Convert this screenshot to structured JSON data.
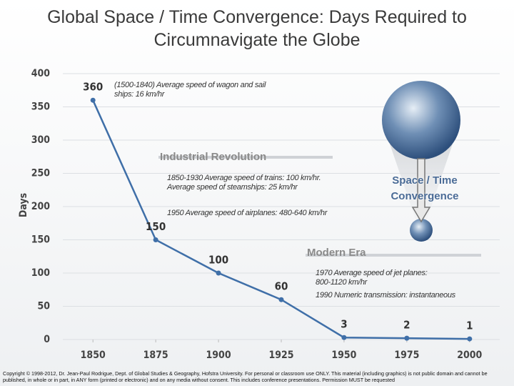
{
  "chart_data": {
    "type": "line",
    "title": "Global Space / Time Convergence: Days Required to Circumnavigate the Globe",
    "y_label": "Days",
    "x": [
      1850,
      1875,
      1900,
      1925,
      1950,
      1975,
      2000
    ],
    "series": [
      {
        "name": "Days",
        "color": "#3f6fa8",
        "values": [
          360,
          150,
          100,
          60,
          3,
          2,
          1
        ]
      }
    ],
    "xlim": [
      1838,
      2012
    ],
    "xticks": [
      1850,
      1875,
      1900,
      1925,
      1950,
      1975,
      2000
    ],
    "ylim": [
      0,
      400
    ],
    "yticks": [
      0,
      50,
      100,
      150,
      200,
      250,
      300,
      350,
      400
    ],
    "grid": true,
    "annotations": [
      "(1500-1840) Average speed of wagon and sail ships: 16 km/hr",
      "Industrial Revolution",
      "1850-1930 Average speed of trains: 100 km/hr. Average speed of steamships: 25 km/hr",
      "1950 Average speed of airplanes: 480-640 km/hr",
      "Modern Era",
      "1970 Average speed of jet planes: 800-1120 km/hr",
      "1990 Numeric transmission: instantaneous",
      "Space / Time Convergence"
    ],
    "footer": "Copyright © 1998-2012, Dr. Jean-Paul Rodrigue, Dept. of Global Studies & Geography, Hofstra University. For personal or classroom use ONLY. This material (including graphics) is not public domain and cannot be published, in whole or in part, in ANY form (printed or electronic) and on any media without consent. This includes conference presentations. Permission MUST be requested"
  }
}
